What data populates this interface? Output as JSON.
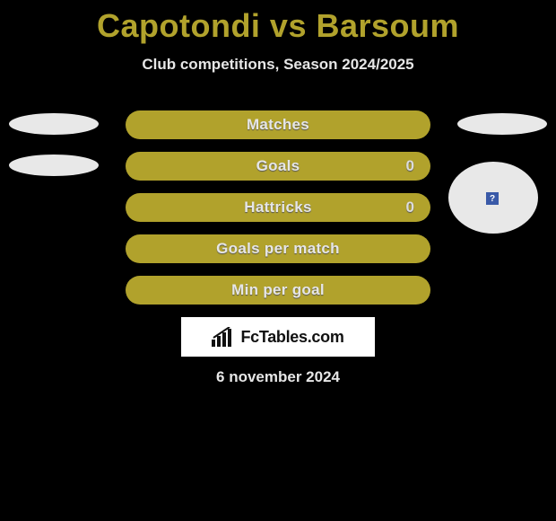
{
  "title": "Capotondi vs Barsoum",
  "subtitle": "Club competitions, Season 2024/2025",
  "colors": {
    "background": "#000000",
    "accent": "#b1a22c",
    "ellipse": "#e8e8e8",
    "text_light": "#e6e6e6",
    "logo_box_bg": "#ffffff",
    "icon_bg": "#3a5aa8"
  },
  "stats": [
    {
      "label": "Matches",
      "left_ellipse": true,
      "right_ellipse": true,
      "right_value": ""
    },
    {
      "label": "Goals",
      "left_ellipse": true,
      "right_ellipse": false,
      "right_value": "0"
    },
    {
      "label": "Hattricks",
      "left_ellipse": false,
      "right_ellipse": false,
      "right_value": "0"
    },
    {
      "label": "Goals per match",
      "left_ellipse": false,
      "right_ellipse": false,
      "right_value": ""
    },
    {
      "label": "Min per goal",
      "left_ellipse": false,
      "right_ellipse": false,
      "right_value": ""
    }
  ],
  "big_circle_icon": "?",
  "logo": {
    "text": "FcTables.com"
  },
  "date": "6 november 2024"
}
